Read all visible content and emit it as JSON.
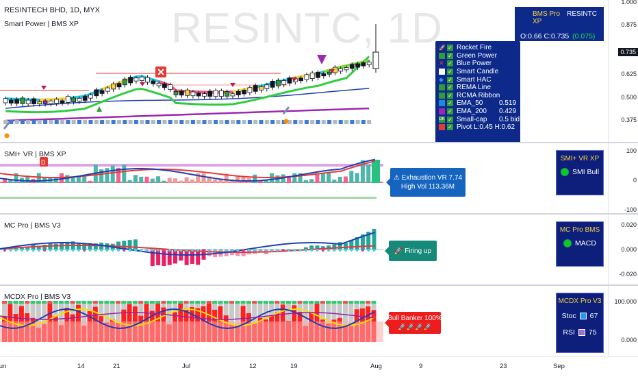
{
  "symbol": {
    "title": "RESINTECH BHD, 1D, MYX",
    "watermark": "RESINTC, 1D",
    "indicator": "Smart Power | BMS XP"
  },
  "info_box": {
    "name": "BMS Pro XP",
    "ticker": "RESINTC",
    "ohlc": "O:0.66 C:0.735",
    "change": "(0.075)"
  },
  "legend": [
    {
      "icon": "rocket",
      "label": "Rocket Fire",
      "value": ""
    },
    {
      "icon": "#2e9c3a",
      "label": "Green Power",
      "value": ""
    },
    {
      "icon": "cross",
      "label": "Blue Power",
      "value": ""
    },
    {
      "icon": "#ffffff",
      "label": "Smart Candle",
      "value": ""
    },
    {
      "icon": "diamond",
      "label": "Smart HAC",
      "value": ""
    },
    {
      "icon": "#2e9c3a",
      "label": "REMA Line",
      "value": ""
    },
    {
      "icon": "#2e9c3a",
      "label": "RCMA Ribbon",
      "value": ""
    },
    {
      "icon": "#1e88e5",
      "label": "EMA_50",
      "value": "0.519"
    },
    {
      "icon": "#9c27b0",
      "label": "EMA_200",
      "value": "0.429"
    },
    {
      "icon": "ok",
      "label": "Small-cap",
      "value": "0.5 bid"
    },
    {
      "icon": "#e53935",
      "label": "Pivot L:0.45 H:0.62",
      "value": ""
    }
  ],
  "price_axis": [
    "1.000",
    "0.875",
    "0.735",
    "0.625",
    "0.500",
    "0.375"
  ],
  "smi": {
    "title": "SMI+ VR | BMS XP",
    "bubble": "⚠ Exhaustion VR 7.74\nHigh Vol 113.36M",
    "box_title": "SMI+ VR XP",
    "box_value": "SMI Bull",
    "axis": [
      "100",
      "0",
      "-100"
    ]
  },
  "mc": {
    "title": "MC Pro | BMS V3",
    "bubble": "🚀 Firing up",
    "box_title": "MC Pro BMS",
    "box_value": "MACD",
    "axis": [
      "0.020",
      "0.000",
      "-0.020"
    ]
  },
  "mcdx": {
    "title": "MCDX Pro | BMS V3",
    "bubble": "Bull Banker 100%\n🚀🚀🚀🚀",
    "box_title": "MCDX Pro V3",
    "stoc_label": "Stoc",
    "stoc_value": "67",
    "rsi_label": "RSI",
    "rsi_value": "75",
    "axis": [
      "100.000",
      "0.000"
    ]
  },
  "time_axis": [
    "Jun",
    "14",
    "21",
    "Jul",
    "12",
    "19",
    "Aug",
    "9",
    "23",
    "Sep"
  ],
  "colors": {
    "bull": "#26a69a",
    "bear": "#ef5350",
    "accent": "#0d2a8a",
    "mcdx_red": "#ff1a1a"
  }
}
